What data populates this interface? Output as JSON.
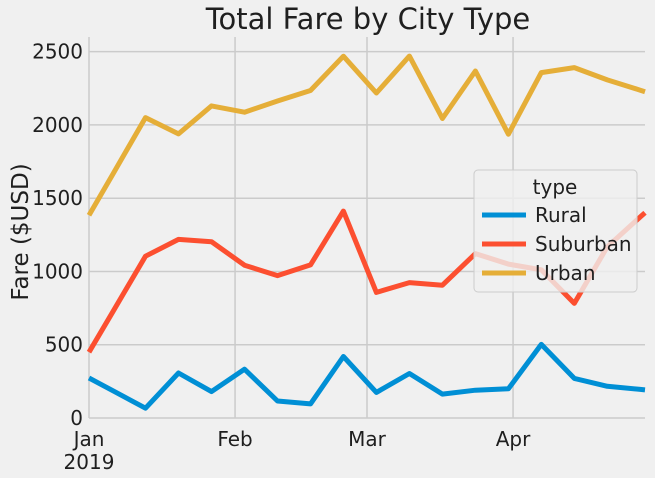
{
  "chart_data": {
    "type": "line",
    "title": "Total Fare by City Type",
    "xlabel": "",
    "ylabel": "Fare ($USD)",
    "x": [
      "2019-01-06",
      "2019-01-13",
      "2019-01-20",
      "2019-01-27",
      "2019-02-03",
      "2019-02-10",
      "2019-02-17",
      "2019-02-24",
      "2019-03-03",
      "2019-03-10",
      "2019-03-17",
      "2019-03-24",
      "2019-03-31",
      "2019-04-07",
      "2019-04-14",
      "2019-04-21",
      "2019-04-28"
    ],
    "x_ticks": [
      {
        "date": "2019-01-01",
        "label": "Jan",
        "sub": "2019"
      },
      {
        "date": "2019-02-01",
        "label": "Feb",
        "sub": ""
      },
      {
        "date": "2019-03-01",
        "label": "Mar",
        "sub": ""
      },
      {
        "date": "2019-04-01",
        "label": "Apr",
        "sub": ""
      }
    ],
    "xlim": [
      "2019-01-01",
      "2019-04-29"
    ],
    "ylim": [
      0,
      2600
    ],
    "y_ticks": [
      0,
      500,
      1000,
      1500,
      2000,
      2500
    ],
    "grid": true,
    "legend": {
      "title": "type",
      "position": "center-right"
    },
    "series": [
      {
        "name": "Rural",
        "color": "#008fd5",
        "values": [
          187,
          67,
          307,
          180,
          333,
          116,
          96,
          420,
          175,
          304,
          163,
          190,
          199,
          502,
          270,
          216,
          195
        ]
      },
      {
        "name": "Suburban",
        "color": "#fc4f30",
        "values": [
          722,
          1104,
          1219,
          1203,
          1043,
          972,
          1045,
          1412,
          857,
          924,
          906,
          1122,
          1050,
          1011,
          782,
          1168,
          1372
        ]
      },
      {
        "name": "Urban",
        "color": "#e5ae38",
        "values": [
          1661,
          2050,
          1939,
          2130,
          2087,
          2163,
          2235,
          2469,
          2218,
          2470,
          2044,
          2368,
          1937,
          2357,
          2391,
          2307,
          2237
        ]
      }
    ]
  }
}
